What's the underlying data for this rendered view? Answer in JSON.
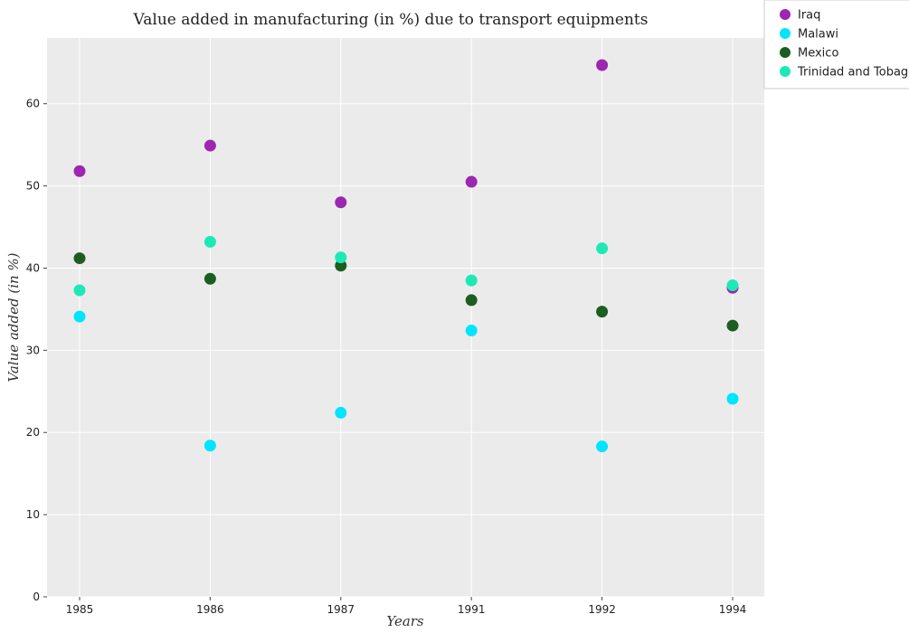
{
  "chart_data": {
    "type": "scatter",
    "title": "Value added in manufacturing (in %) due to transport equipments",
    "xlabel": "Years",
    "ylabel": "Value added (in %)",
    "categories": [
      "1985",
      "1986",
      "1987",
      "1991",
      "1992",
      "1994"
    ],
    "ylim": [
      0,
      68
    ],
    "yticks": [
      "0",
      "10",
      "20",
      "30",
      "40",
      "50",
      "60"
    ],
    "grid": true,
    "legend_position": "top-right",
    "series": [
      {
        "name": "Iraq",
        "color": "#9c27b0",
        "values": [
          51.8,
          54.9,
          48.0,
          50.5,
          64.7,
          37.6
        ]
      },
      {
        "name": "Malawi",
        "color": "#00e5ff",
        "values": [
          34.1,
          18.4,
          22.4,
          32.4,
          18.3,
          24.1
        ]
      },
      {
        "name": "Mexico",
        "color": "#1b5e20",
        "values": [
          41.2,
          38.7,
          40.3,
          36.1,
          34.7,
          33.0
        ]
      },
      {
        "name": "Trinidad and Tobago",
        "color": "#1de9b6",
        "values": [
          37.3,
          43.2,
          41.3,
          38.5,
          42.4,
          37.9
        ]
      }
    ]
  }
}
